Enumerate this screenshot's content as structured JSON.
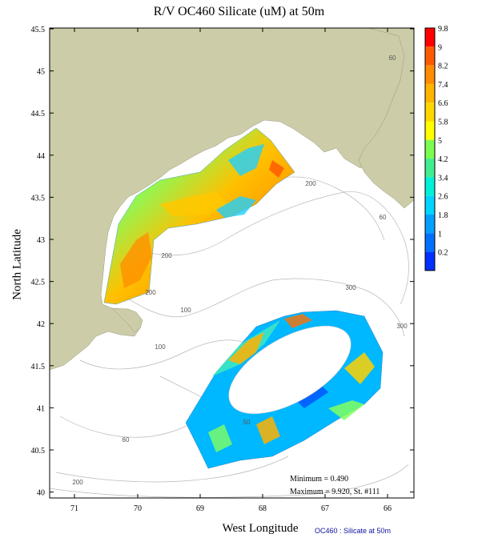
{
  "title": "R/V OC460 Silicate (uM) at 50m",
  "xlabel": "West Longitude",
  "ylabel": "North Latitude",
  "footer": "OC460 : Silicate at 50m",
  "stats": {
    "minimum": "Minimum = 0.490",
    "maximum": "Maximum = 9.920, St. #111"
  },
  "x_ticks": [
    "71",
    "70",
    "69",
    "68",
    "67",
    "66"
  ],
  "y_ticks": [
    "45.5",
    "45",
    "44.5",
    "44",
    "43.5",
    "43",
    "42.5",
    "42",
    "41.5",
    "41",
    "40.5",
    "40"
  ],
  "colorbar": {
    "ticks": [
      "9.8",
      "9",
      "8.2",
      "7.4",
      "6.6",
      "5.8",
      "5",
      "4.2",
      "3.4",
      "2.6",
      "1.8",
      "1",
      "0.2"
    ],
    "colors": [
      "#ff0000",
      "#ff5a00",
      "#ff8c00",
      "#ffb400",
      "#ffd700",
      "#ffff00",
      "#7cfc50",
      "#40ee90",
      "#00f0d8",
      "#00d4ff",
      "#00a0ff",
      "#0070ff",
      "#0030ff"
    ]
  },
  "contour_labels": [
    "60",
    "200",
    "60",
    "200",
    "300",
    "100",
    "300",
    "200",
    "100",
    "50",
    "60",
    "200"
  ],
  "colors": {
    "land": "#cccca8",
    "contour": "#b0b0b0",
    "station": "#909090"
  }
}
